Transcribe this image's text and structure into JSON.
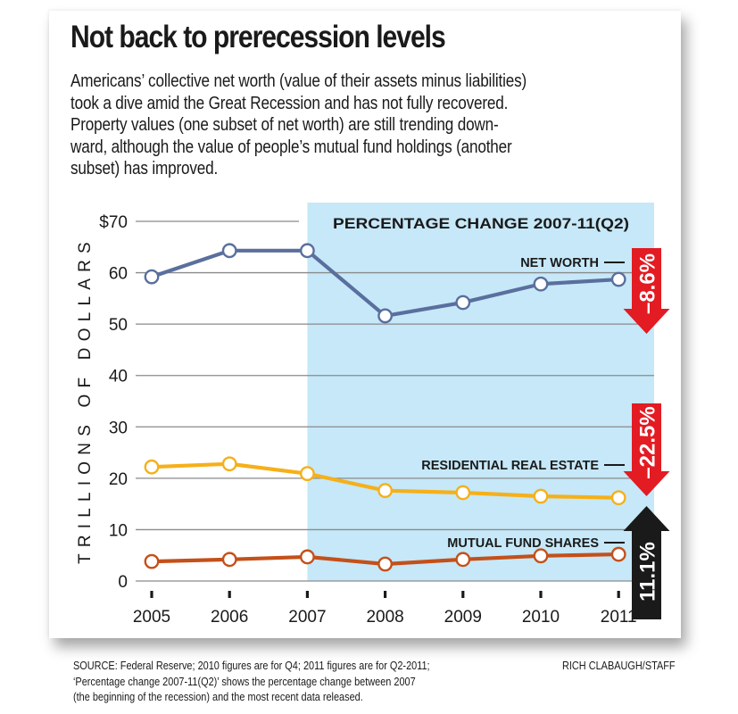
{
  "title": "Not back to prerecession levels",
  "intro_lines": [
    "Americans’ collective net worth (value of their assets minus liabilities)",
    "took a dive amid the Great Recession and has not fully recovered.",
    "Property values (one subset of net worth) are still trending down-",
    "ward, although the value of people’s mutual fund holdings (another",
    "subset) has improved."
  ],
  "chart_data": {
    "type": "line",
    "title": "Not back to prerecession levels",
    "xlabel": "",
    "ylabel": "TRILLIONS OF DOLLARS",
    "x": [
      "2005",
      "2006",
      "2007",
      "2008",
      "2009",
      "2010",
      "2011"
    ],
    "ylim": [
      0,
      70
    ],
    "yticks": [
      0,
      10,
      20,
      30,
      40,
      50,
      60,
      70
    ],
    "ytick_labels": [
      "0",
      "10",
      "20",
      "30",
      "40",
      "50",
      "60",
      "$70"
    ],
    "grid": true,
    "shaded_region": {
      "from": "2007",
      "to": "2011",
      "label": "PERCENTAGE CHANGE 2007-11(Q2)",
      "color": "#c6e8f8"
    },
    "series": [
      {
        "name": "NET WORTH",
        "color": "#5a6f9e",
        "values": [
          59.2,
          64.3,
          64.3,
          51.6,
          54.2,
          57.8,
          58.7
        ],
        "change": "–8.6%",
        "direction": "down",
        "change_color": "#e31b23"
      },
      {
        "name": "RESIDENTIAL REAL ESTATE",
        "color": "#f5b01a",
        "values": [
          22.2,
          22.8,
          20.9,
          17.6,
          17.2,
          16.5,
          16.2
        ],
        "change": "–22.5%",
        "direction": "down",
        "change_color": "#e31b23"
      },
      {
        "name": "MUTUAL FUND SHARES",
        "color": "#c4501a",
        "values": [
          3.8,
          4.2,
          4.7,
          3.3,
          4.2,
          4.9,
          5.2
        ],
        "change": "11.1%",
        "direction": "up",
        "change_color": "#1a1a1a"
      }
    ]
  },
  "footer": {
    "source_lines": [
      "SOURCE: Federal Reserve; 2010 figures are for Q4; 2011 figures are for Q2-2011;",
      "‘Percentage change 2007-11(Q2)’ shows the percentage change between 2007",
      "(the beginning of the recession) and the most recent data released."
    ],
    "credit": "RICH CLABAUGH/STAFF"
  }
}
